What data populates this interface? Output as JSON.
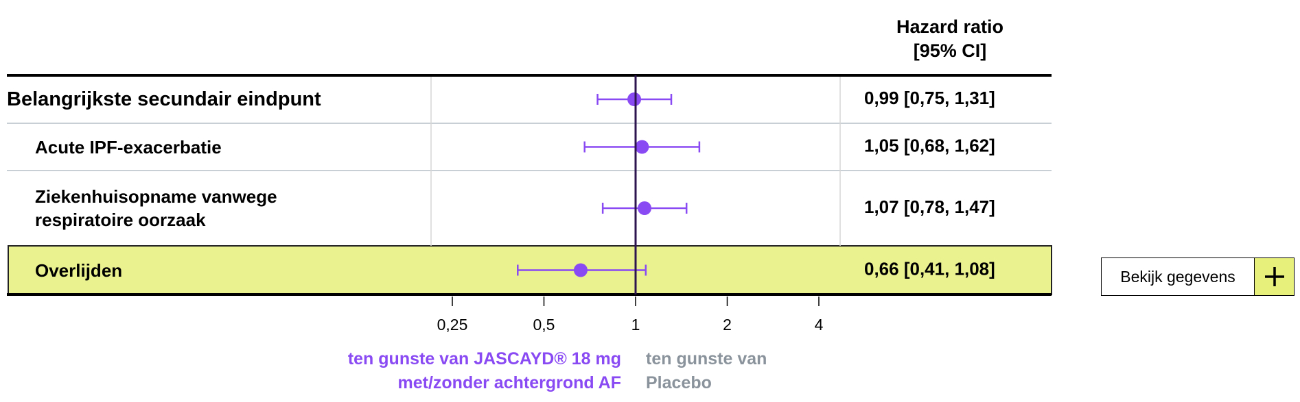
{
  "chart_data": {
    "type": "forest",
    "header": "Hazard ratio [95% CI]",
    "rows": [
      {
        "label": "Belangrijkste secundair eindpunt",
        "value": 0.99,
        "lower": 0.75,
        "upper": 1.31,
        "value_label": "0,99 [0,75, 1,31]"
      },
      {
        "label": "Acute IPF-exacerbatie",
        "value": 1.05,
        "lower": 0.68,
        "upper": 1.62,
        "value_label": "1,05 [0,68, 1,62]"
      },
      {
        "label": "Ziekenhuisopname vanwege respiratoire oorzaak",
        "value": 1.07,
        "lower": 0.78,
        "upper": 1.47,
        "value_label": "1,07 [0,78, 1,47]"
      },
      {
        "label": "Overlijden",
        "value": 0.66,
        "lower": 0.41,
        "upper": 1.08,
        "value_label": "0,66 [0,41, 1,08]"
      }
    ],
    "color": "#8a4af3",
    "log_scale": true,
    "reference_line": 1,
    "xlim": [
      0.25,
      4
    ],
    "xticks": [
      {
        "value": 0.25,
        "label": "0,25"
      },
      {
        "value": 0.5,
        "label": "0,5"
      },
      1,
      2,
      4
    ],
    "left_label": "ten gunste van JASCAYD® 18 mg met/zonder achtergrond AF",
    "right_label": "ten gunste van Placebo"
  },
  "button": {
    "label": "Bekijk gegevens"
  }
}
